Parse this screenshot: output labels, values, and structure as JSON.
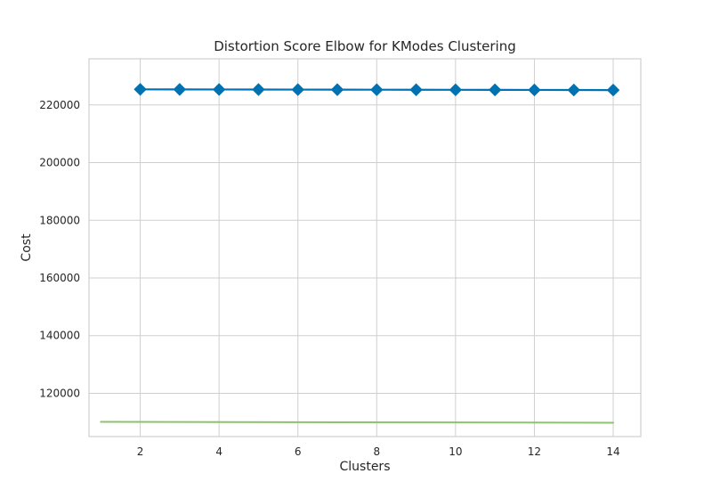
{
  "chart_data": {
    "type": "line",
    "title": "Distortion Score Elbow for KModes Clustering",
    "xlabel": "Clusters",
    "ylabel": "Cost",
    "xlim": [
      0.7,
      14.7
    ],
    "ylim": [
      105000,
      236000
    ],
    "xticks": [
      2,
      4,
      6,
      8,
      10,
      12,
      14
    ],
    "yticks": [
      120000,
      140000,
      160000,
      180000,
      200000,
      220000
    ],
    "grid": true,
    "colors": {
      "series_main": "#0072B2",
      "series_secondary": "#8CC36E",
      "grid": "#cfcfcf",
      "text": "#262626"
    },
    "series": [
      {
        "x": [
          2,
          3,
          4,
          5,
          6,
          7,
          8,
          9,
          10,
          11,
          12,
          13,
          14
        ],
        "values": [
          225400,
          225380,
          225360,
          225340,
          225320,
          225300,
          225280,
          225260,
          225240,
          225220,
          225200,
          225180,
          225160
        ],
        "marker": "diamond",
        "color": "#0072B2"
      },
      {
        "x": [
          1,
          14
        ],
        "values": [
          110100,
          109800
        ],
        "marker": "none",
        "color": "#8CC36E"
      }
    ]
  }
}
